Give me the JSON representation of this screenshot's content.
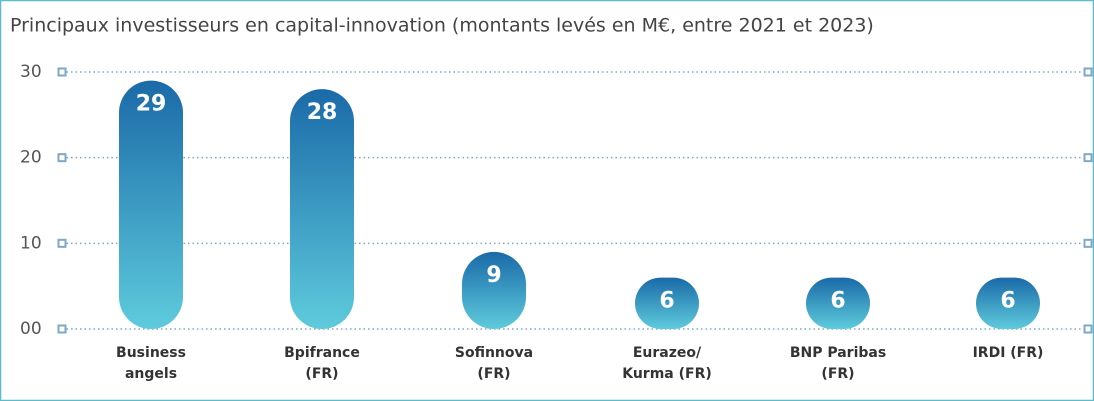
{
  "chart_data": {
    "type": "bar",
    "title": "Principaux investisseurs en capital-innovation (montants levés en M€, entre 2021 et 2023)",
    "categories": [
      "Business\nangels",
      "Bpifrance\n(FR)",
      "Sofinnova\n(FR)",
      "Eurazeo/\nKurma (FR)",
      "BNP Paribas\n(FR)",
      "IRDI (FR)"
    ],
    "values": [
      29,
      28,
      9,
      6,
      6,
      6
    ],
    "color_top": "#1a6aa8",
    "color_bottom": "#5ecbdc",
    "ylim": [
      0,
      30
    ],
    "yticks": [
      {
        "value": 0,
        "label": "00"
      },
      10,
      20,
      30
    ],
    "grid": true
  }
}
